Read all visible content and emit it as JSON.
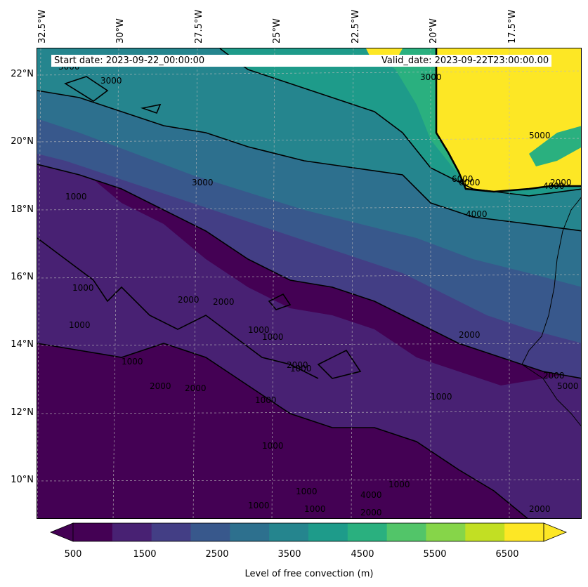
{
  "header": {
    "start_date": "Start date: 2023-09-22_00:00:00",
    "valid_date": "Valid_date: 2023-09-22T23:00:00.00"
  },
  "axes": {
    "lon_labels": [
      "32.5°W",
      "30°W",
      "27.5°W",
      "25°W",
      "22.5°W",
      "20°W",
      "17.5°W"
    ],
    "lat_labels": [
      "22°N",
      "20°N",
      "18°N",
      "16°N",
      "14°N",
      "12°N",
      "10°N"
    ]
  },
  "contour_labels": [
    "3000",
    "3000",
    "3000",
    "1000",
    "1000",
    "1000",
    "1000",
    "2000",
    "2000",
    "1000",
    "2000",
    "1000",
    "2000",
    "1000",
    "1000",
    "1000",
    "1000",
    "1000",
    "1000",
    "1000",
    "2000",
    "1000",
    "2000",
    "2000",
    "3000",
    "4000",
    "6000",
    "6000",
    "5000",
    "2000",
    "5000",
    "2000",
    "2000",
    "4000",
    "4000"
  ],
  "colorbar": {
    "label": "Level of free convection (m)",
    "ticks": [
      "500",
      "1500",
      "2500",
      "3500",
      "4500",
      "5500",
      "6500"
    ],
    "colors": [
      "#440154",
      "#482173",
      "#433e85",
      "#38588c",
      "#2d708e",
      "#25858e",
      "#1e9b8a",
      "#2ab07f",
      "#52c569",
      "#86d549",
      "#c2df23",
      "#fde725"
    ],
    "under_color": "#440154",
    "over_color": "#fde725",
    "extend": "both"
  }
}
